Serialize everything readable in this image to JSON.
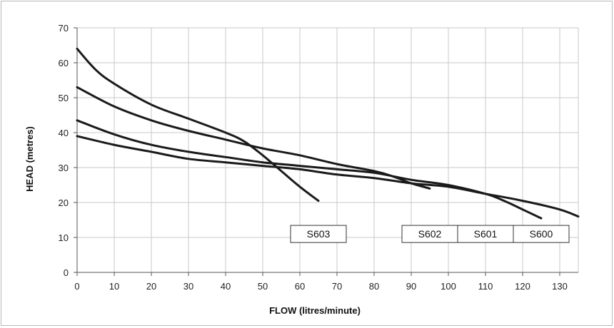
{
  "chart_data": {
    "type": "line",
    "xlabel": "FLOW (litres/minute)",
    "ylabel": "HEAD (metres)",
    "xlim": [
      0,
      135
    ],
    "ylim": [
      0,
      70
    ],
    "x_ticks": [
      0,
      10,
      20,
      30,
      40,
      50,
      60,
      70,
      80,
      90,
      100,
      110,
      120,
      130
    ],
    "y_ticks": [
      0,
      10,
      20,
      30,
      40,
      50,
      60,
      70
    ],
    "grid": true,
    "series": [
      {
        "name": "S603",
        "label_anchor_x": 65,
        "points": [
          [
            0,
            64
          ],
          [
            5,
            58
          ],
          [
            10,
            54
          ],
          [
            20,
            48
          ],
          [
            30,
            44
          ],
          [
            40,
            40
          ],
          [
            45,
            37.5
          ],
          [
            50,
            33.5
          ],
          [
            55,
            29
          ],
          [
            60,
            24.5
          ],
          [
            65,
            20.5
          ]
        ]
      },
      {
        "name": "S602",
        "label_anchor_x": 95,
        "points": [
          [
            0,
            53
          ],
          [
            10,
            47.5
          ],
          [
            20,
            43.5
          ],
          [
            30,
            40.5
          ],
          [
            40,
            38
          ],
          [
            50,
            35.5
          ],
          [
            60,
            33.5
          ],
          [
            70,
            31
          ],
          [
            80,
            29
          ],
          [
            85,
            27.5
          ],
          [
            90,
            25.5
          ],
          [
            95,
            24
          ]
        ]
      },
      {
        "name": "S601",
        "label_anchor_x": 110,
        "points": [
          [
            0,
            43.5
          ],
          [
            10,
            39.5
          ],
          [
            20,
            36.5
          ],
          [
            30,
            34.5
          ],
          [
            40,
            33
          ],
          [
            50,
            31.5
          ],
          [
            60,
            30.5
          ],
          [
            70,
            29.5
          ],
          [
            80,
            28.5
          ],
          [
            90,
            26.5
          ],
          [
            100,
            25
          ],
          [
            110,
            22.5
          ],
          [
            115,
            20.5
          ],
          [
            120,
            18
          ],
          [
            125,
            15.5
          ]
        ]
      },
      {
        "name": "S600",
        "label_anchor_x": 125,
        "points": [
          [
            0,
            39
          ],
          [
            10,
            36.5
          ],
          [
            20,
            34.5
          ],
          [
            30,
            32.5
          ],
          [
            40,
            31.5
          ],
          [
            50,
            30.5
          ],
          [
            60,
            29.5
          ],
          [
            70,
            28
          ],
          [
            80,
            27
          ],
          [
            90,
            25.5
          ],
          [
            100,
            24.5
          ],
          [
            110,
            22.5
          ],
          [
            120,
            20.5
          ],
          [
            130,
            18
          ],
          [
            135,
            16
          ]
        ]
      }
    ],
    "series_labels": [
      {
        "text": "S603",
        "x_center": 65,
        "y": 11
      },
      {
        "text": "S602",
        "x_center": 95,
        "y": 11
      },
      {
        "text": "S601",
        "x_center": 110,
        "y": 11
      },
      {
        "text": "S600",
        "x_center": 125,
        "y": 11
      }
    ]
  }
}
